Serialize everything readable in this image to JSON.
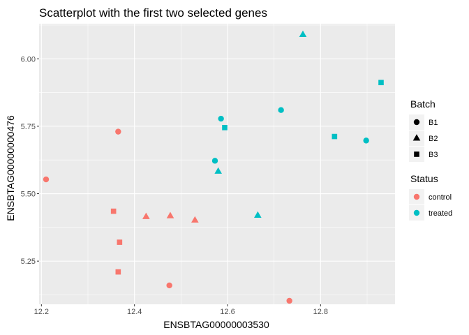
{
  "chart_data": {
    "type": "scatter",
    "title": "Scatterplot with the first two selected genes",
    "xlabel": "ENSBTAG00000003530",
    "ylabel": "ENSBTAG00000000476",
    "xlim": [
      12.195,
      12.96
    ],
    "ylim": [
      5.09,
      6.13
    ],
    "x_ticks": [
      12.2,
      12.4,
      12.6,
      12.8
    ],
    "x_tick_labels": [
      "12.2",
      "12.4",
      "12.6",
      "12.8"
    ],
    "y_ticks": [
      5.25,
      5.5,
      5.75,
      6.0
    ],
    "y_tick_labels": [
      "5.25",
      "5.50",
      "5.75",
      "6.00"
    ],
    "grid": true,
    "background": "#ebebeb",
    "legends": [
      {
        "title": "Batch",
        "kind": "shape",
        "entries": [
          {
            "label": "B1",
            "shape": "circle"
          },
          {
            "label": "B2",
            "shape": "triangle"
          },
          {
            "label": "B3",
            "shape": "square"
          }
        ]
      },
      {
        "title": "Status",
        "kind": "color",
        "entries": [
          {
            "label": "control",
            "color": "#f8766d"
          },
          {
            "label": "treated",
            "color": "#00bfc4"
          }
        ]
      }
    ],
    "points": [
      {
        "x": 12.21,
        "y": 5.553,
        "batch": "B1",
        "status": "control"
      },
      {
        "x": 12.365,
        "y": 5.73,
        "batch": "B1",
        "status": "control"
      },
      {
        "x": 12.475,
        "y": 5.16,
        "batch": "B1",
        "status": "control"
      },
      {
        "x": 12.733,
        "y": 5.103,
        "batch": "B1",
        "status": "control"
      },
      {
        "x": 12.425,
        "y": 5.415,
        "batch": "B2",
        "status": "control"
      },
      {
        "x": 12.477,
        "y": 5.418,
        "batch": "B2",
        "status": "control"
      },
      {
        "x": 12.53,
        "y": 5.402,
        "batch": "B2",
        "status": "control"
      },
      {
        "x": 12.355,
        "y": 5.435,
        "batch": "B3",
        "status": "control"
      },
      {
        "x": 12.368,
        "y": 5.32,
        "batch": "B3",
        "status": "control"
      },
      {
        "x": 12.365,
        "y": 5.21,
        "batch": "B3",
        "status": "control"
      },
      {
        "x": 12.586,
        "y": 5.778,
        "batch": "B1",
        "status": "treated"
      },
      {
        "x": 12.573,
        "y": 5.622,
        "batch": "B1",
        "status": "treated"
      },
      {
        "x": 12.715,
        "y": 5.81,
        "batch": "B1",
        "status": "treated"
      },
      {
        "x": 12.898,
        "y": 5.697,
        "batch": "B1",
        "status": "treated"
      },
      {
        "x": 12.762,
        "y": 6.09,
        "batch": "B2",
        "status": "treated"
      },
      {
        "x": 12.58,
        "y": 5.583,
        "batch": "B2",
        "status": "treated"
      },
      {
        "x": 12.665,
        "y": 5.42,
        "batch": "B2",
        "status": "treated"
      },
      {
        "x": 12.594,
        "y": 5.745,
        "batch": "B3",
        "status": "treated"
      },
      {
        "x": 12.83,
        "y": 5.712,
        "batch": "B3",
        "status": "treated"
      },
      {
        "x": 12.93,
        "y": 5.912,
        "batch": "B3",
        "status": "treated"
      }
    ]
  }
}
